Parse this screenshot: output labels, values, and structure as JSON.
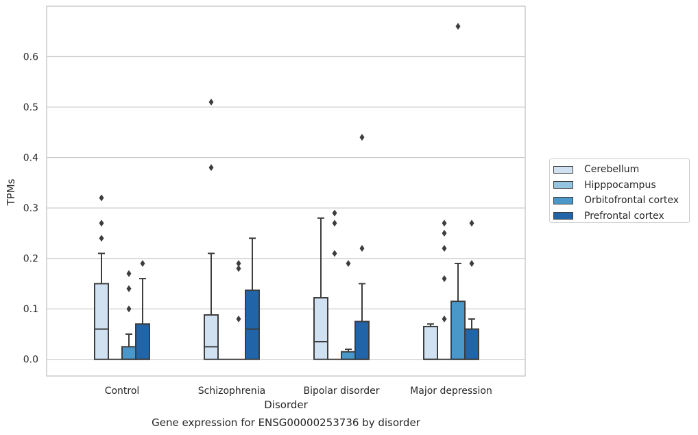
{
  "chart_data": {
    "type": "box",
    "title": "",
    "xlabel": "Disorder",
    "ylabel": "TPMs",
    "ylim": [
      -0.033,
      0.7
    ],
    "yticks": [
      "0.0",
      "0.1",
      "0.2",
      "0.3",
      "0.4",
      "0.5",
      "0.6"
    ],
    "grid": "horizontal",
    "legend_position": "right",
    "categories": [
      "Control",
      "Schizophrenia",
      "Bipolar disorder",
      "Major depression"
    ],
    "series": [
      {
        "name": "Cerebellum",
        "color": "#d0e1f2",
        "boxes": [
          {
            "q1": 0.0,
            "median": 0.06,
            "q3": 0.15,
            "whisker_low": 0.0,
            "whisker_high": 0.21,
            "outliers": [
              0.24,
              0.27,
              0.32
            ]
          },
          {
            "q1": 0.0,
            "median": 0.025,
            "q3": 0.088,
            "whisker_low": 0.0,
            "whisker_high": 0.21,
            "outliers": [
              0.38,
              0.51
            ]
          },
          {
            "q1": 0.0,
            "median": 0.035,
            "q3": 0.122,
            "whisker_low": 0.0,
            "whisker_high": 0.28,
            "outliers": []
          },
          {
            "q1": 0.0,
            "median": 0.0,
            "q3": 0.065,
            "whisker_low": 0.0,
            "whisker_high": 0.07,
            "outliers": []
          }
        ]
      },
      {
        "name": "Hipppocampus",
        "color": "#94c4df",
        "boxes": [
          {
            "q1": 0.0,
            "median": 0.0,
            "q3": 0.0,
            "whisker_low": 0.0,
            "whisker_high": 0.0,
            "outliers": []
          },
          {
            "q1": 0.0,
            "median": 0.0,
            "q3": 0.0,
            "whisker_low": 0.0,
            "whisker_high": 0.0,
            "outliers": []
          },
          {
            "q1": 0.0,
            "median": 0.0,
            "q3": 0.0,
            "whisker_low": 0.0,
            "whisker_high": 0.0,
            "outliers": [
              0.21,
              0.27,
              0.29
            ]
          },
          {
            "q1": 0.0,
            "median": 0.0,
            "q3": 0.0,
            "whisker_low": 0.0,
            "whisker_high": 0.0,
            "outliers": [
              0.22,
              0.25,
              0.27
            ]
          }
        ]
      },
      {
        "name": "Orbitofrontal cortex",
        "color": "#4a98c9",
        "boxes": [
          {
            "q1": 0.0,
            "median": 0.0,
            "q3": 0.025,
            "whisker_low": 0.0,
            "whisker_high": 0.05,
            "outliers": [
              0.1,
              0.14,
              0.17
            ]
          },
          {
            "q1": 0.0,
            "median": 0.0,
            "q3": 0.0,
            "whisker_low": 0.0,
            "whisker_high": 0.0,
            "outliers": [
              0.08,
              0.18,
              0.19
            ]
          },
          {
            "q1": 0.0,
            "median": 0.0,
            "q3": 0.015,
            "whisker_low": 0.0,
            "whisker_high": 0.02,
            "outliers": [
              0.19
            ]
          },
          {
            "q1": 0.0,
            "median": 0.0,
            "q3": 0.115,
            "whisker_low": 0.0,
            "whisker_high": 0.19,
            "outliers": [
              0.66
            ]
          }
        ]
      },
      {
        "name": "Prefrontal cortex",
        "color": "#2264a8",
        "boxes": [
          {
            "q1": 0.0,
            "median": 0.0,
            "q3": 0.07,
            "whisker_low": 0.0,
            "whisker_high": 0.16,
            "outliers": [
              0.19
            ]
          },
          {
            "q1": 0.0,
            "median": 0.06,
            "q3": 0.137,
            "whisker_low": 0.0,
            "whisker_high": 0.24,
            "outliers": []
          },
          {
            "q1": 0.0,
            "median": 0.0,
            "q3": 0.075,
            "whisker_low": 0.0,
            "whisker_high": 0.15,
            "outliers": [
              0.22,
              0.44
            ]
          },
          {
            "q1": 0.0,
            "median": 0.0,
            "q3": 0.06,
            "whisker_low": 0.0,
            "whisker_high": 0.08,
            "outliers": [
              0.19,
              0.27
            ]
          }
        ]
      }
    ],
    "extra_outliers": [
      {
        "category": 3,
        "x_offset_groups": -0.5,
        "value": 0.08
      },
      {
        "category": 3,
        "x_offset_groups": -0.5,
        "value": 0.16
      }
    ]
  },
  "caption": "Gene expression for ENSG00000253736 by disorder"
}
